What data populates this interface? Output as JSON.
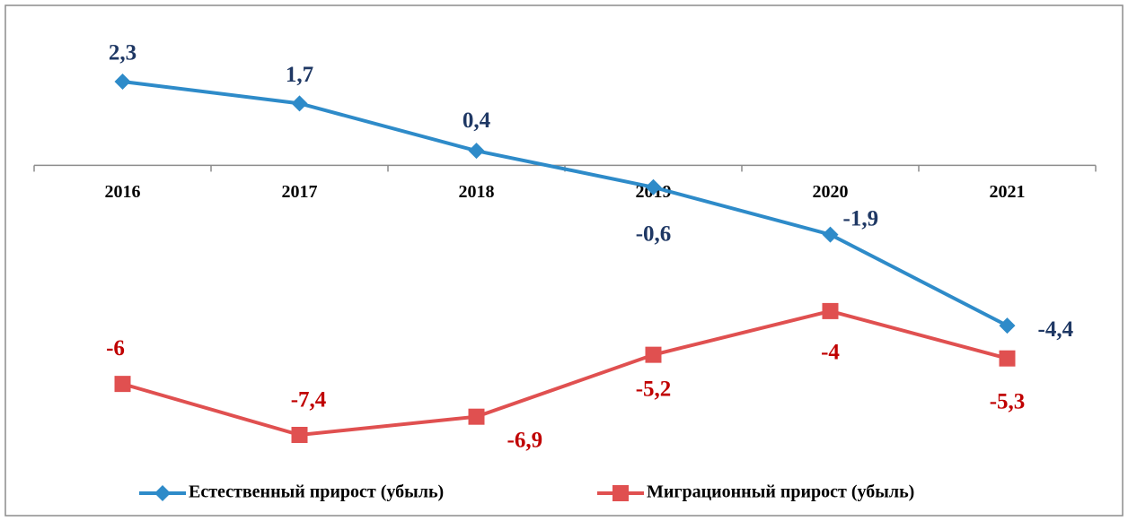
{
  "chart_data": {
    "type": "line",
    "categories": [
      "2016",
      "2017",
      "2018",
      "2019",
      "2020",
      "2021"
    ],
    "series": [
      {
        "name": "Естественный прирост (убыль)",
        "color": "#2e8bc9",
        "label_color": "#1f3864",
        "marker": "diamond",
        "values": [
          2.3,
          1.7,
          0.4,
          -0.6,
          -1.9,
          -4.4
        ],
        "value_labels": [
          "2,3",
          "1,7",
          "0,4",
          "-0,6",
          "-1,9",
          "-4,4"
        ]
      },
      {
        "name": "Миграционный прирост (убыль)",
        "color": "#e05050",
        "label_color": "#c00000",
        "marker": "square",
        "values": [
          -6,
          -7.4,
          -6.9,
          -5.2,
          -4,
          -5.3
        ],
        "value_labels": [
          "-6",
          "-7,4",
          "-6,9",
          "-5,2",
          "-4",
          "-5,3"
        ]
      }
    ]
  }
}
